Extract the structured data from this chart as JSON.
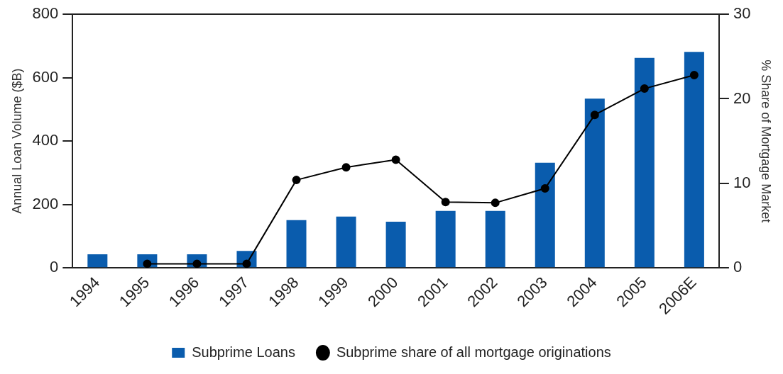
{
  "chart_data": {
    "type": "bar",
    "categories": [
      "1994",
      "1995",
      "1996",
      "1997",
      "1998",
      "1999",
      "2000",
      "2001",
      "2002",
      "2003",
      "2004",
      "2005",
      "2006E"
    ],
    "series": [
      {
        "name": "Subprime Loans",
        "color": "#0a5cad",
        "values": [
          43,
          43,
          43,
          54,
          151,
          162,
          146,
          180,
          180,
          332,
          534,
          662,
          681
        ]
      },
      {
        "name": "Subprime share of all mortgage originations",
        "type": "line",
        "axis": "y2",
        "color": "#000000",
        "values": [
          null,
          0.5,
          0.5,
          0.5,
          10.4,
          11.9,
          12.8,
          7.8,
          7.7,
          9.4,
          18.1,
          21.2,
          22.8
        ]
      }
    ],
    "ylabel": "Annual Loan Volume ($B)",
    "y2label": "% Share of Mortgage Market",
    "ylim": [
      0,
      800
    ],
    "yticks": [
      0,
      200,
      400,
      600,
      800
    ],
    "y2lim": [
      0,
      30
    ],
    "y2ticks": [
      0,
      10,
      20,
      30
    ],
    "grid": false,
    "legend": "bottom",
    "marker": "circle",
    "line_style": "solid"
  }
}
